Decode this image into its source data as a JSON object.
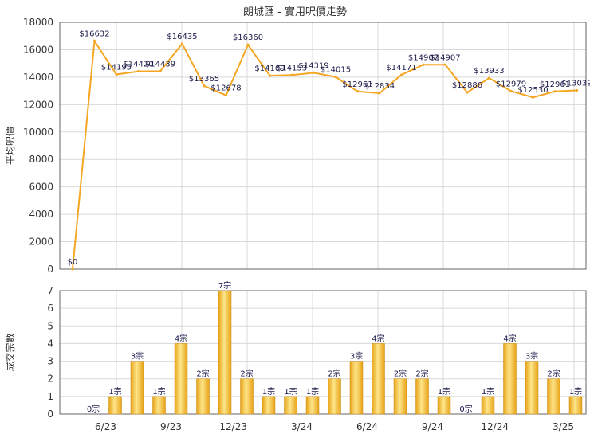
{
  "title": "朗城匯 - 實用呎價走勢",
  "colors": {
    "line": "#f5a623",
    "bar_light": "#fde58a",
    "bar_dark": "#e8a316",
    "grid": "#d8d8d8",
    "axis": "#666666"
  },
  "chart_data": [
    {
      "type": "line",
      "title": "朗城匯 - 實用呎價走勢",
      "ylabel": "平均呎價",
      "ylim": [
        0,
        18000
      ],
      "yticks": [
        0,
        2000,
        4000,
        6000,
        8000,
        10000,
        12000,
        14000,
        16000,
        18000
      ],
      "grid": true,
      "values": [
        0,
        16632,
        14195,
        14420,
        14439,
        16435,
        13365,
        12678,
        16360,
        14109,
        14153,
        14319,
        14015,
        12961,
        12834,
        14171,
        14907,
        14907,
        12886,
        13933,
        12979,
        12530,
        12961,
        13039
      ],
      "value_labels": [
        "$0",
        "$16632",
        "$14195",
        "$14420",
        "$14439",
        "$16435",
        "$13365",
        "$12678",
        "$16360",
        "$14109",
        "$14153",
        "$14319",
        "$14015",
        "$12961",
        "$12834",
        "$14171",
        "$14907",
        "$14907",
        "$12886",
        "$13933",
        "$12979",
        "$12530",
        "$12961",
        "$13039"
      ]
    },
    {
      "type": "bar",
      "ylabel": "成交宗數",
      "ylim": [
        0,
        7
      ],
      "yticks": [
        0,
        1,
        2,
        3,
        4,
        5,
        6,
        7
      ],
      "grid": true,
      "values": [
        0,
        1,
        3,
        1,
        4,
        2,
        7,
        2,
        1,
        1,
        1,
        2,
        3,
        4,
        2,
        2,
        1,
        0,
        1,
        4,
        3,
        2,
        1,
        1
      ],
      "value_labels": [
        "0宗",
        "1宗",
        "3宗",
        "1宗",
        "4宗",
        "2宗",
        "7宗",
        "2宗",
        "1宗",
        "1宗",
        "1宗",
        "2宗",
        "3宗",
        "4宗",
        "2宗",
        "2宗",
        "1宗",
        "0宗",
        "1宗",
        "4宗",
        "3宗",
        "2宗",
        "1宗",
        "1宗"
      ],
      "xtick_labels": [
        "6/23",
        "9/23",
        "12/23",
        "3/24",
        "6/24",
        "9/24",
        "12/24",
        "3/25"
      ]
    }
  ]
}
